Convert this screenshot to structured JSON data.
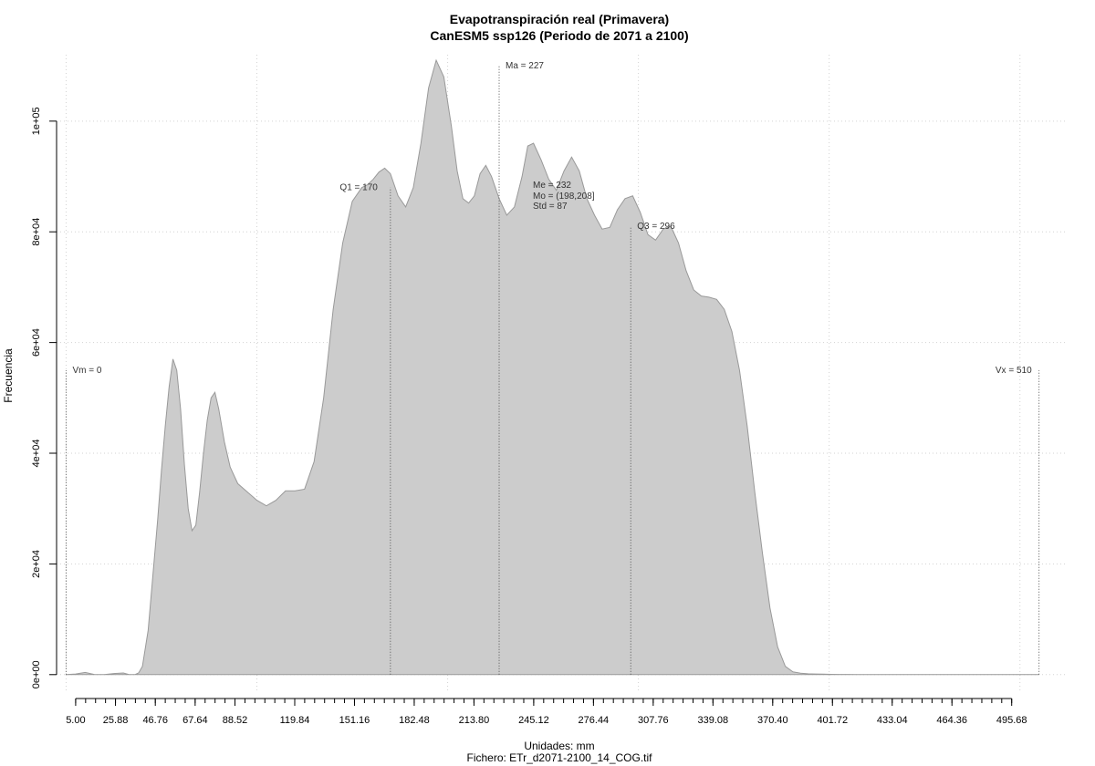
{
  "chart_data": {
    "type": "area",
    "title": "Evapotranspiración real (Primavera)",
    "subtitle": "CanESM5 ssp126 (Periodo de 2071 a 2100)",
    "xlabel": "Unidades: mm",
    "caption": "Fichero: ETr_d2071-2100_14_COG.tif",
    "ylabel": "Frecuencia",
    "xlim": [
      -5,
      525
    ],
    "ylim": [
      -3000,
      112000
    ],
    "grid": true,
    "fill_color": "#cccccc",
    "line_color": "#999999",
    "x_ticks": [
      "5.00",
      "25.88",
      "46.76",
      "67.64",
      "88.52",
      "119.84",
      "151.16",
      "182.48",
      "213.80",
      "245.12",
      "276.44",
      "307.76",
      "339.08",
      "370.40",
      "401.72",
      "433.04",
      "464.36",
      "495.68"
    ],
    "y_ticks": [
      "0e+00",
      "2e+04",
      "4e+04",
      "6e+04",
      "8e+04",
      "1e+05"
    ],
    "x": [
      0,
      5,
      10,
      15,
      20,
      25,
      30,
      33,
      36,
      38,
      40,
      43,
      46,
      48,
      50,
      52,
      54,
      56,
      58,
      60,
      62,
      64,
      66,
      68,
      70,
      72,
      74,
      76,
      78,
      80,
      83,
      86,
      90,
      95,
      100,
      105,
      110,
      115,
      120,
      125,
      130,
      135,
      140,
      145,
      150,
      155,
      158,
      161,
      164,
      167,
      170,
      174,
      178,
      182,
      186,
      190,
      194,
      198,
      202,
      205,
      208,
      211,
      214,
      217,
      220,
      223,
      227,
      231,
      235,
      239,
      242,
      245,
      249,
      253,
      257,
      261,
      265,
      269,
      273,
      277,
      281,
      285,
      289,
      293,
      297,
      301,
      305,
      309,
      313,
      317,
      321,
      325,
      329,
      333,
      337,
      341,
      345,
      349,
      353,
      357,
      361,
      365,
      369,
      373,
      377,
      381,
      385,
      389,
      393,
      397,
      401,
      405,
      409,
      415,
      420,
      430,
      440,
      450,
      460,
      470,
      480,
      490,
      500,
      505,
      510
    ],
    "y": [
      0,
      100,
      400,
      0,
      0,
      200,
      300,
      0,
      0,
      300,
      1500,
      8000,
      20000,
      28000,
      37000,
      45000,
      52000,
      57000,
      55000,
      48000,
      38000,
      30000,
      26000,
      27000,
      33000,
      40000,
      46000,
      50000,
      51000,
      48000,
      42000,
      37500,
      34500,
      33000,
      31500,
      30500,
      31500,
      33200,
      33200,
      33500,
      38500,
      50000,
      66000,
      78000,
      85500,
      88000,
      88500,
      89500,
      90800,
      91500,
      90500,
      86500,
      84500,
      88000,
      96000,
      106000,
      111000,
      108000,
      99000,
      91000,
      86000,
      85200,
      86500,
      90500,
      92000,
      90000,
      86000,
      83000,
      84500,
      90000,
      95500,
      96000,
      93000,
      89500,
      87500,
      91000,
      93500,
      91000,
      86000,
      83000,
      80500,
      80800,
      84000,
      86000,
      86500,
      83500,
      79500,
      78500,
      80500,
      81000,
      78000,
      73000,
      69500,
      68400,
      68200,
      67800,
      66000,
      62000,
      55000,
      45000,
      33000,
      22000,
      12000,
      5000,
      1500,
      500,
      250,
      150,
      100,
      80,
      50,
      30,
      20,
      10,
      0,
      0,
      0,
      0,
      0,
      0,
      0,
      0,
      0,
      0,
      0
    ],
    "vertical_lines": [
      {
        "label": "Vm = 0",
        "x": 0,
        "y_top": 55000
      },
      {
        "label": "Q1 = 170",
        "x": 170,
        "y_top": 88000
      },
      {
        "label": "Ma = 227",
        "x": 227,
        "y_top": 110000
      },
      {
        "label": "Q3 = 296",
        "x": 296,
        "y_top": 81000
      },
      {
        "label": "Vx = 510",
        "x": 510,
        "y_top": 55000
      }
    ],
    "stats_annotation": [
      "Me = 232",
      "Mo = (198,208]",
      "Std = 87"
    ]
  }
}
